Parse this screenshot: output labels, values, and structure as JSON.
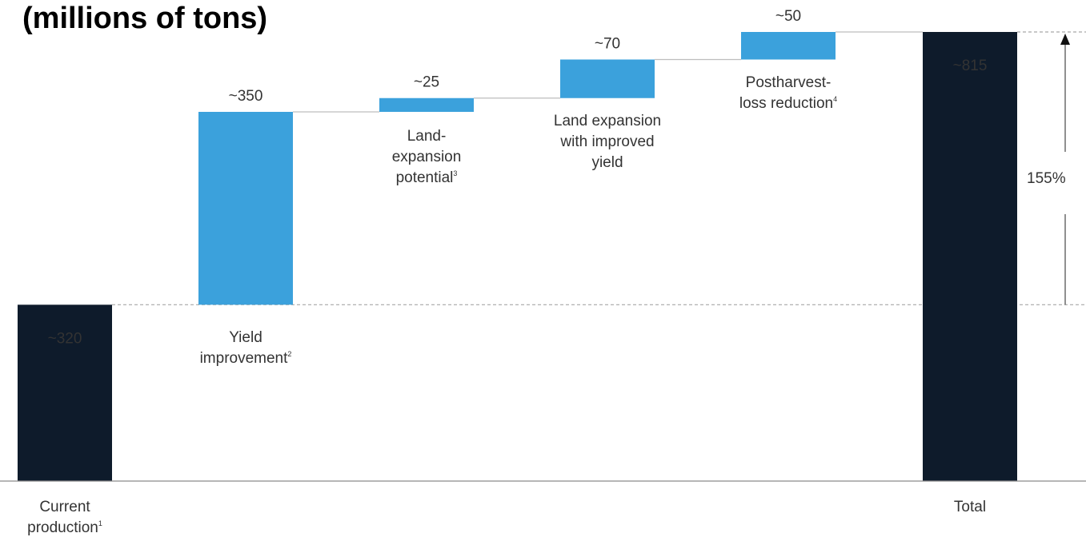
{
  "title": "(millions of tons)",
  "chart_data": {
    "type": "waterfall",
    "unit": "millions of tons",
    "steps": [
      {
        "kind": "total",
        "value": 320,
        "value_label": "~320",
        "label": [
          "Current",
          "production"
        ],
        "footnote": "1"
      },
      {
        "kind": "increase",
        "value": 350,
        "value_label": "~350",
        "label": [
          "Yield",
          "improvement"
        ],
        "footnote": "2"
      },
      {
        "kind": "increase",
        "value": 25,
        "value_label": "~25",
        "label": [
          "Land-",
          "expansion",
          "potential"
        ],
        "footnote": "3"
      },
      {
        "kind": "increase",
        "value": 70,
        "value_label": "~70",
        "label": [
          "Land expansion",
          "with improved",
          "yield"
        ],
        "footnote": ""
      },
      {
        "kind": "increase",
        "value": 50,
        "value_label": "~50",
        "label": [
          "Postharvest-",
          "loss reduction"
        ],
        "footnote": "4"
      },
      {
        "kind": "total",
        "value": 815,
        "value_label": "~815",
        "label": [
          "Total"
        ],
        "footnote": ""
      }
    ],
    "growth_label": "155%",
    "colors": {
      "total": "#0e1b2b",
      "increase": "#3ba1dc",
      "axis": "#8a8a8a",
      "dashed": "#a8a8a8",
      "text": "#333333"
    }
  }
}
